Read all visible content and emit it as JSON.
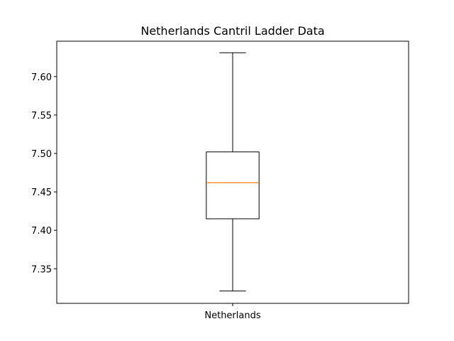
{
  "chart_data": {
    "type": "box",
    "title": "Netherlands Cantril Ladder Data",
    "xlabel": "",
    "ylabel": "",
    "categories": [
      "Netherlands"
    ],
    "boxes": [
      {
        "name": "Netherlands",
        "whisker_low": 7.321,
        "q1": 7.415,
        "median": 7.462,
        "q3": 7.502,
        "whisker_high": 7.631
      }
    ],
    "ylim": [
      7.305,
      7.646
    ],
    "yticks": [
      7.35,
      7.4,
      7.45,
      7.5,
      7.55,
      7.6
    ],
    "ytick_labels": [
      "7.35",
      "7.40",
      "7.45",
      "7.50",
      "7.55",
      "7.60"
    ],
    "grid": false,
    "colors": {
      "box": "#000000",
      "median": "#ff7f0e"
    }
  }
}
